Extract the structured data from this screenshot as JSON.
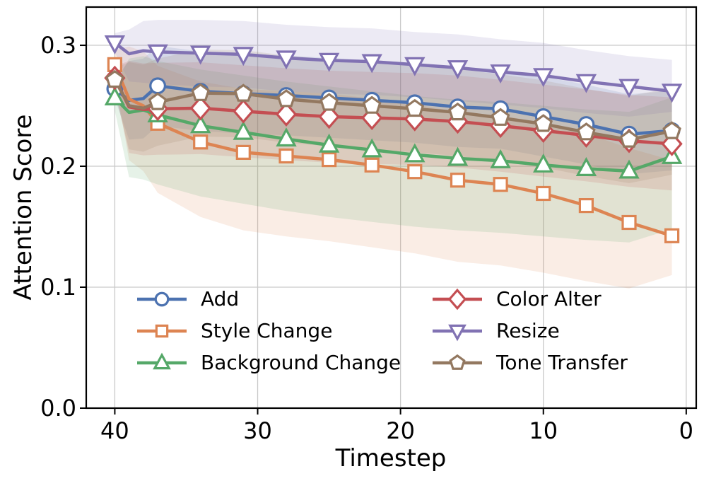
{
  "figure": {
    "background": "#ffffff",
    "text_color": "#000000",
    "grid_color": "#c9c9c9",
    "spine_color": "#000000"
  },
  "chart_data": {
    "type": "line",
    "title": "",
    "xlabel": "Timestep",
    "ylabel": "Attention Score",
    "x_axis_reversed": true,
    "xlim": [
      42.0,
      -0.7
    ],
    "ylim": [
      0.0,
      0.3316
    ],
    "grid": true,
    "legend_position": "lower center, two columns, no frame",
    "x_ticks": [
      {
        "value": 40,
        "label": "40"
      },
      {
        "value": 30,
        "label": "30"
      },
      {
        "value": 20,
        "label": "20"
      },
      {
        "value": 10,
        "label": "10"
      },
      {
        "value": 0,
        "label": "0"
      }
    ],
    "y_ticks": [
      {
        "value": 0.0,
        "label": "0.0"
      },
      {
        "value": 0.1,
        "label": "0.1"
      },
      {
        "value": 0.2,
        "label": "0.2"
      },
      {
        "value": 0.3,
        "label": "0.3"
      }
    ],
    "x": [
      40,
      39,
      38,
      37,
      34,
      31,
      28,
      25,
      22,
      19,
      16,
      13,
      10,
      7,
      4,
      1
    ],
    "marker_timesteps": [
      40,
      37,
      34,
      31,
      28,
      25,
      22,
      19,
      16,
      13,
      10,
      7,
      4,
      1
    ],
    "band_opacity": 0.15,
    "series": [
      {
        "name": "Add",
        "color": "#4C72B0",
        "marker": "circle",
        "values": [
          0.264,
          0.2545,
          0.256,
          0.2665,
          0.262,
          0.26,
          0.2585,
          0.2565,
          0.2545,
          0.2525,
          0.249,
          0.2475,
          0.241,
          0.2345,
          0.2265,
          0.2295
        ],
        "band_lower": [
          0.256,
          0.222,
          0.223,
          0.2335,
          0.229,
          0.227,
          0.2255,
          0.2235,
          0.2215,
          0.2195,
          0.216,
          0.2145,
          0.208,
          0.2015,
          0.1935,
          0.1965
        ],
        "band_upper": [
          0.272,
          0.287,
          0.289,
          0.2995,
          0.295,
          0.293,
          0.2915,
          0.2895,
          0.2875,
          0.2855,
          0.282,
          0.2805,
          0.274,
          0.2675,
          0.2595,
          0.2625
        ]
      },
      {
        "name": "Style Change",
        "color": "#DD8452",
        "marker": "square",
        "values": [
          0.284,
          0.2555,
          0.25,
          0.2355,
          0.22,
          0.2115,
          0.2085,
          0.2055,
          0.201,
          0.1955,
          0.1885,
          0.185,
          0.1775,
          0.1675,
          0.1535,
          0.1425
        ],
        "band_lower": [
          0.272,
          0.205,
          0.196,
          0.178,
          0.158,
          0.147,
          0.142,
          0.138,
          0.133,
          0.128,
          0.121,
          0.118,
          0.112,
          0.105,
          0.099,
          0.11
        ],
        "band_upper": [
          0.296,
          0.299,
          0.295,
          0.283,
          0.27,
          0.264,
          0.262,
          0.26,
          0.256,
          0.251,
          0.245,
          0.242,
          0.236,
          0.227,
          0.215,
          0.205
        ]
      },
      {
        "name": "Background Change",
        "color": "#55A868",
        "marker": "triangle-up",
        "values": [
          0.2565,
          0.2445,
          0.2465,
          0.2425,
          0.2335,
          0.228,
          0.2225,
          0.2175,
          0.2135,
          0.2095,
          0.2065,
          0.2045,
          0.201,
          0.198,
          0.196,
          0.208
        ],
        "band_lower": [
          0.246,
          0.191,
          0.189,
          0.185,
          0.175,
          0.169,
          0.163,
          0.158,
          0.154,
          0.15,
          0.147,
          0.145,
          0.142,
          0.139,
          0.137,
          0.148
        ],
        "band_upper": [
          0.267,
          0.289,
          0.291,
          0.287,
          0.28,
          0.275,
          0.27,
          0.266,
          0.262,
          0.258,
          0.255,
          0.253,
          0.25,
          0.247,
          0.245,
          0.257
        ]
      },
      {
        "name": "Color Alter",
        "color": "#C44E52",
        "marker": "diamond",
        "values": [
          0.273,
          0.249,
          0.247,
          0.2475,
          0.248,
          0.2455,
          0.243,
          0.241,
          0.24,
          0.239,
          0.237,
          0.2335,
          0.2295,
          0.2255,
          0.221,
          0.2185
        ],
        "band_lower": [
          0.263,
          0.211,
          0.209,
          0.2095,
          0.21,
          0.2075,
          0.205,
          0.203,
          0.202,
          0.201,
          0.199,
          0.1955,
          0.1915,
          0.1875,
          0.183,
          0.18
        ],
        "band_upper": [
          0.283,
          0.287,
          0.285,
          0.2855,
          0.286,
          0.2835,
          0.281,
          0.279,
          0.278,
          0.277,
          0.275,
          0.2715,
          0.2675,
          0.2635,
          0.259,
          0.257
        ]
      },
      {
        "name": "Resize",
        "color": "#8172B3",
        "marker": "triangle-down",
        "values": [
          0.302,
          0.293,
          0.2955,
          0.2945,
          0.2935,
          0.2925,
          0.2895,
          0.2875,
          0.2865,
          0.284,
          0.2815,
          0.278,
          0.275,
          0.27,
          0.266,
          0.262
        ],
        "band_lower": [
          0.294,
          0.27,
          0.269,
          0.268,
          0.266,
          0.265,
          0.262,
          0.26,
          0.259,
          0.257,
          0.254,
          0.251,
          0.248,
          0.244,
          0.241,
          0.245
        ],
        "band_upper": [
          0.31,
          0.313,
          0.32,
          0.321,
          0.321,
          0.32,
          0.317,
          0.315,
          0.314,
          0.311,
          0.309,
          0.305,
          0.302,
          0.296,
          0.291,
          0.288
        ]
      },
      {
        "name": "Tone Transfer",
        "color": "#937860",
        "marker": "pentagon",
        "values": [
          0.2715,
          0.25,
          0.248,
          0.253,
          0.2605,
          0.26,
          0.2555,
          0.2525,
          0.25,
          0.2475,
          0.2445,
          0.24,
          0.235,
          0.228,
          0.222,
          0.229
        ],
        "band_lower": [
          0.2615,
          0.214,
          0.212,
          0.217,
          0.2245,
          0.224,
          0.2195,
          0.2165,
          0.214,
          0.2115,
          0.2085,
          0.204,
          0.199,
          0.192,
          0.186,
          0.193
        ],
        "band_upper": [
          0.2815,
          0.286,
          0.284,
          0.289,
          0.2965,
          0.296,
          0.2915,
          0.2885,
          0.286,
          0.2835,
          0.2805,
          0.276,
          0.271,
          0.264,
          0.258,
          0.265
        ]
      }
    ],
    "legend_columns": [
      [
        "Add",
        "Style Change",
        "Background Change"
      ],
      [
        "Color Alter",
        "Resize",
        "Tone Transfer"
      ]
    ]
  }
}
